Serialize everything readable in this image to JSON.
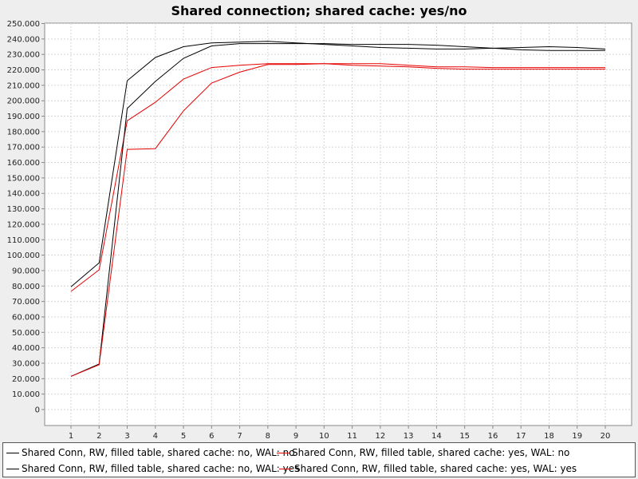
{
  "chart_data": {
    "type": "line",
    "title": "Shared connection; shared cache: yes/no",
    "xlabel": "",
    "ylabel": "",
    "x": [
      1,
      2,
      3,
      4,
      5,
      6,
      7,
      8,
      9,
      10,
      11,
      12,
      13,
      14,
      15,
      16,
      17,
      18,
      19,
      20
    ],
    "ylim": [
      0,
      250000
    ],
    "ytick_labels": [
      "0",
      "10.000",
      "20.000",
      "30.000",
      "40.000",
      "50.000",
      "60.000",
      "70.000",
      "80.000",
      "90.000",
      "100.000",
      "110.000",
      "120.000",
      "130.000",
      "140.000",
      "150.000",
      "160.000",
      "170.000",
      "180.000",
      "190.000",
      "200.000",
      "210.000",
      "220.000",
      "230.000",
      "240.000",
      "250.000"
    ],
    "xtick_labels": [
      "1",
      "2",
      "3",
      "4",
      "5",
      "6",
      "7",
      "8",
      "9",
      "10",
      "11",
      "12",
      "13",
      "14",
      "15",
      "16",
      "17",
      "18",
      "19",
      "20"
    ],
    "grid": true,
    "legend_position": "bottom",
    "series": [
      {
        "name": "Shared Conn, RW, filled table, shared cache: no, WAL: no",
        "color": "#000000",
        "values": [
          79500,
          95000,
          213000,
          228000,
          235000,
          237500,
          238000,
          238500,
          237500,
          236500,
          235500,
          234500,
          234000,
          233500,
          233500,
          234000,
          234500,
          235000,
          234500,
          233500
        ]
      },
      {
        "name": "Shared Conn, RW, filled table, shared cache: yes, WAL: no",
        "color": "#e60000",
        "values": [
          76500,
          90500,
          187000,
          199000,
          214000,
          221500,
          223000,
          224000,
          224000,
          224000,
          223000,
          222500,
          222000,
          221000,
          220500,
          220500,
          220500,
          220500,
          220500,
          220500
        ]
      },
      {
        "name": "Shared Conn, RW, filled table, shared cache: no, WAL: yes",
        "color": "#000000",
        "values": [
          21500,
          29500,
          195000,
          212500,
          227500,
          235500,
          237000,
          237000,
          237000,
          237000,
          236500,
          236500,
          236500,
          236000,
          235000,
          234000,
          233000,
          232500,
          232500,
          232500
        ]
      },
      {
        "name": "Shared Conn, RW, filled table, shared cache: yes, WAL: yes",
        "color": "#e60000",
        "values": [
          21500,
          29000,
          168500,
          169000,
          193500,
          211500,
          218500,
          223500,
          223500,
          224000,
          224000,
          224000,
          223000,
          222000,
          222000,
          221500,
          221500,
          221500,
          221500,
          221500
        ]
      }
    ]
  }
}
